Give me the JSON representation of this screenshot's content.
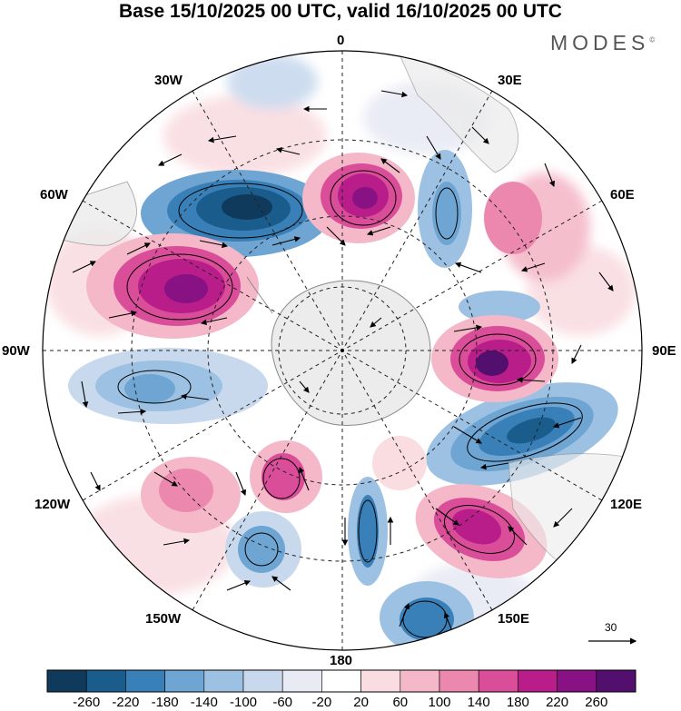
{
  "header": {
    "title": "Base 15/10/2025 00 UTC, valid 16/10/2025 00 UTC",
    "brand": "MODES",
    "brand_mark": "©"
  },
  "map": {
    "projection": "south polar stereographic",
    "longitude_labels": {
      "lon_0": "0",
      "lon_30E": "30E",
      "lon_60E": "60E",
      "lon_90E": "90E",
      "lon_120E": "120E",
      "lon_150E": "150E",
      "lon_180": "180",
      "lon_150W": "150W",
      "lon_120W": "120W",
      "lon_90W": "90W",
      "lon_60W": "60W",
      "lon_30W": "30W"
    },
    "reference_vector": "30",
    "colors": {
      "land": "#ececec",
      "coast": "#8a8a8a",
      "graticule": "#222222"
    }
  },
  "legend": {
    "colors": [
      "#0f3a5c",
      "#1a5c8c",
      "#3a80b8",
      "#6ea5d2",
      "#9dc1e2",
      "#c8d9ee",
      "#e8eaf4",
      "#ffffff",
      "#f9dde1",
      "#f4b8c8",
      "#ec88ae",
      "#da4d98",
      "#b81d8a",
      "#881183",
      "#530f6e"
    ],
    "labels": [
      "-260",
      "-220",
      "-180",
      "-140",
      "-100",
      "-60",
      "-20",
      "20",
      "60",
      "100",
      "140",
      "180",
      "220",
      "260"
    ]
  }
}
